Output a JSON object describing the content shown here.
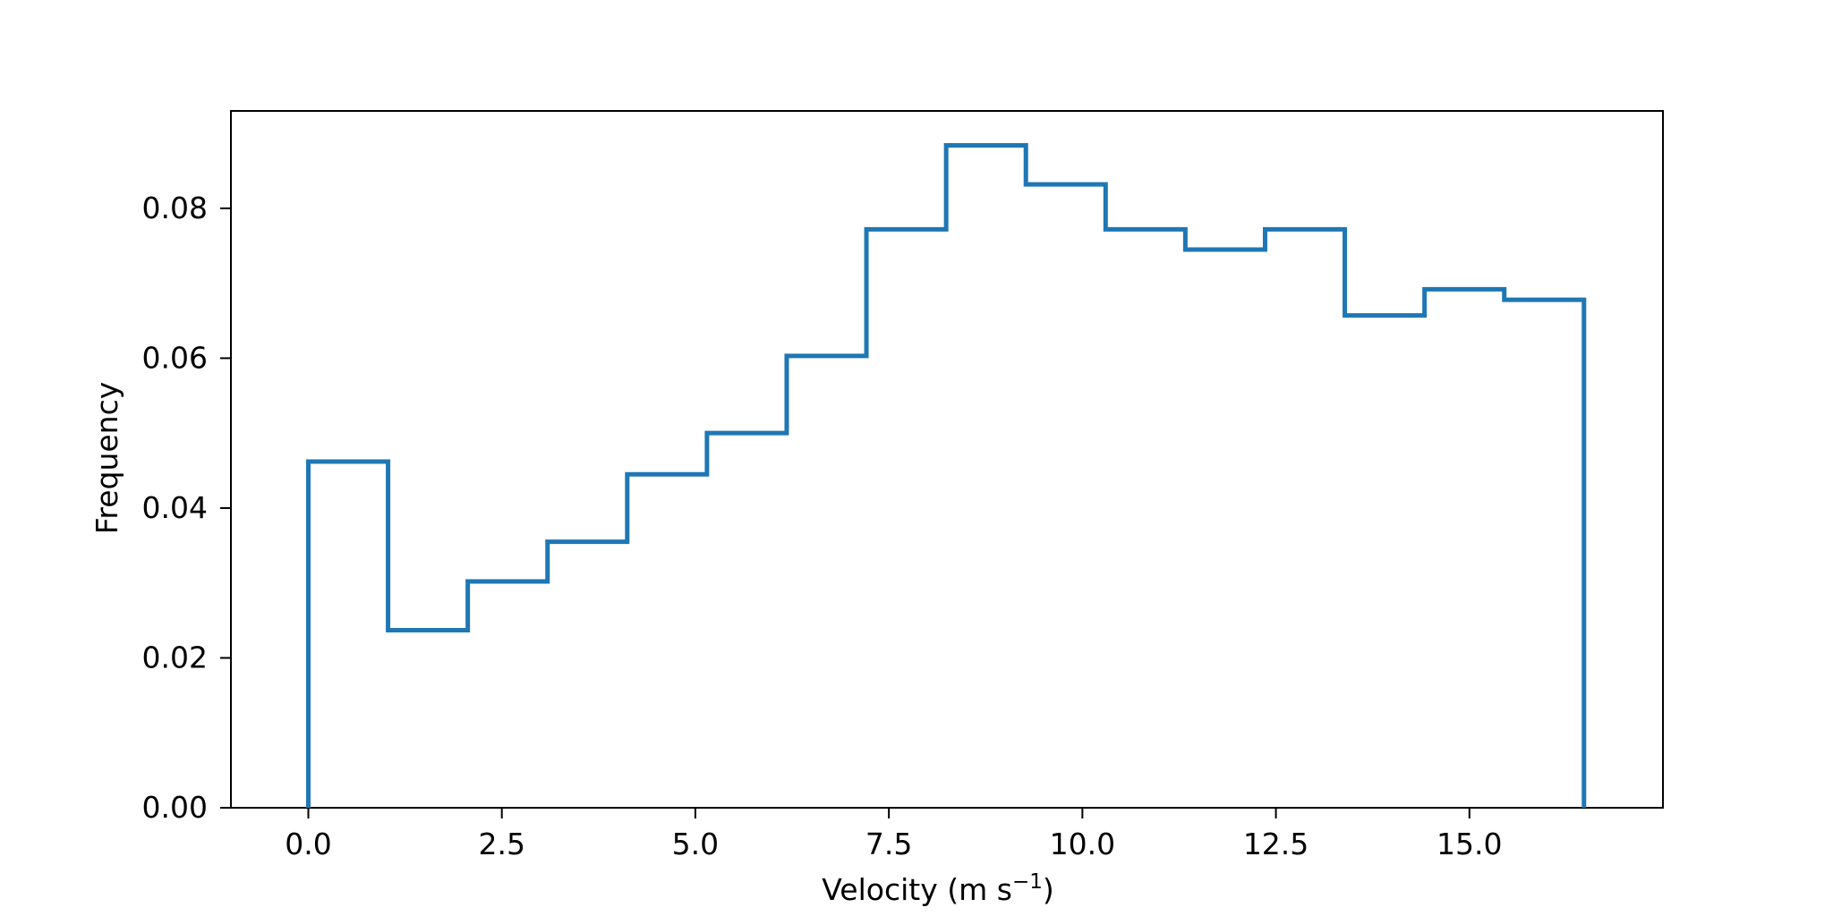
{
  "chart_data": {
    "type": "histogram",
    "title": "",
    "xlabel": {
      "text": "Velocity (m s",
      "superscript": "−1",
      "suffix": ")"
    },
    "ylabel": "Frequency",
    "xlim": [
      -1.0,
      17.5
    ],
    "ylim": [
      0.0,
      0.093
    ],
    "grid": false,
    "legend": "none",
    "xticks": [
      0.0,
      2.5,
      5.0,
      7.5,
      10.0,
      12.5,
      15.0
    ],
    "xtick_labels": [
      "0.0",
      "2.5",
      "5.0",
      "7.5",
      "10.0",
      "12.5",
      "15.0"
    ],
    "yticks": [
      0.0,
      0.02,
      0.04,
      0.06,
      0.08
    ],
    "ytick_labels": [
      "0.00",
      "0.02",
      "0.04",
      "0.06",
      "0.08"
    ],
    "histtype": "step",
    "bin_edges": [
      0.0,
      1.03,
      2.06,
      3.09,
      4.12,
      5.15,
      6.18,
      7.21,
      8.24,
      9.27,
      10.3,
      11.33,
      12.36,
      13.39,
      14.42,
      15.45,
      16.48
    ],
    "frequencies": [
      0.0462,
      0.0237,
      0.0302,
      0.0355,
      0.0445,
      0.05,
      0.0603,
      0.0772,
      0.0884,
      0.0832,
      0.0772,
      0.0745,
      0.0772,
      0.0657,
      0.0692,
      0.0678
    ],
    "colors": {
      "series": "#1f77b4",
      "axes": "#000000",
      "background": "#ffffff"
    }
  }
}
